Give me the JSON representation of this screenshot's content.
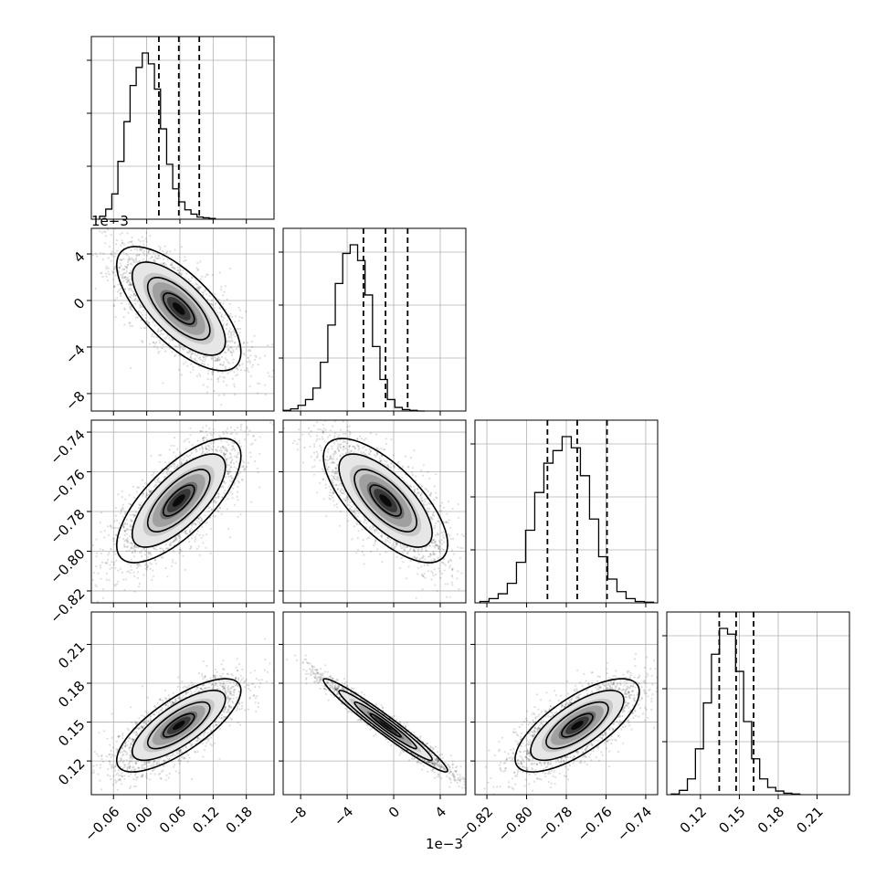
{
  "chart_data": {
    "type": "corner",
    "params": [
      {
        "range": [
          -0.1,
          0.23
        ],
        "ticks": [
          -0.06,
          0.0,
          0.06,
          0.12,
          0.18
        ],
        "tick_labels": [
          "−0.06",
          "0.00",
          "0.06",
          "0.12",
          "0.18"
        ],
        "quantiles": [
          0.022,
          0.058,
          0.095
        ],
        "hist_edges_start": -0.085,
        "hist_bin_width": 0.011,
        "hist_counts": [
          4,
          14,
          35,
          80,
          135,
          185,
          210,
          230,
          215,
          180,
          125,
          76,
          42,
          24,
          13,
          7,
          3,
          2,
          1
        ]
      },
      {
        "range": [
          -0.0095,
          0.0062
        ],
        "ticks": [
          -0.008,
          -0.004,
          0.0,
          0.004
        ],
        "tick_labels": [
          "−8",
          "−4",
          "0",
          "4"
        ],
        "offset_label": "1e−3",
        "quantiles": [
          -0.0026,
          -0.0007,
          0.0012
        ],
        "hist_edges_start": -0.0095,
        "hist_bin_width": 0.00064,
        "hist_counts": [
          1,
          3,
          8,
          16,
          32,
          68,
          120,
          178,
          220,
          232,
          210,
          162,
          90,
          44,
          16,
          5,
          2,
          1,
          0
        ]
      },
      {
        "range": [
          -0.826,
          -0.734
        ],
        "ticks": [
          -0.82,
          -0.8,
          -0.78,
          -0.76,
          -0.74
        ],
        "tick_labels": [
          "−0.82",
          "−0.80",
          "−0.78",
          "−0.76",
          "−0.74"
        ],
        "quantiles": [
          -0.7895,
          -0.7745,
          -0.7595
        ],
        "hist_edges_start": -0.8235,
        "hist_bin_width": 0.0046,
        "hist_counts": [
          2,
          6,
          13,
          28,
          58,
          104,
          158,
          200,
          218,
          238,
          222,
          182,
          120,
          66,
          34,
          16,
          6,
          2,
          1
        ]
      },
      {
        "range": [
          0.094,
          0.235
        ],
        "ticks": [
          0.12,
          0.15,
          0.18,
          0.21
        ],
        "tick_labels": [
          "0.12",
          "0.15",
          "0.18",
          "0.21"
        ],
        "quantiles": [
          0.1345,
          0.1475,
          0.161
        ],
        "hist_edges_start": 0.0975,
        "hist_bin_width": 0.0062,
        "hist_counts": [
          1,
          6,
          22,
          64,
          128,
          196,
          232,
          224,
          172,
          102,
          50,
          22,
          10,
          5,
          2,
          1
        ]
      }
    ],
    "pair_correlations": {
      "1-0": -0.7,
      "2-0": 0.72,
      "2-1": -0.7,
      "3-0": 0.75,
      "3-1": -0.97,
      "3-2": 0.72
    },
    "contour_levels_sigma": [
      0.5,
      1.0,
      1.5,
      2.0
    ],
    "grid": true,
    "points_per_panel": 2500
  }
}
